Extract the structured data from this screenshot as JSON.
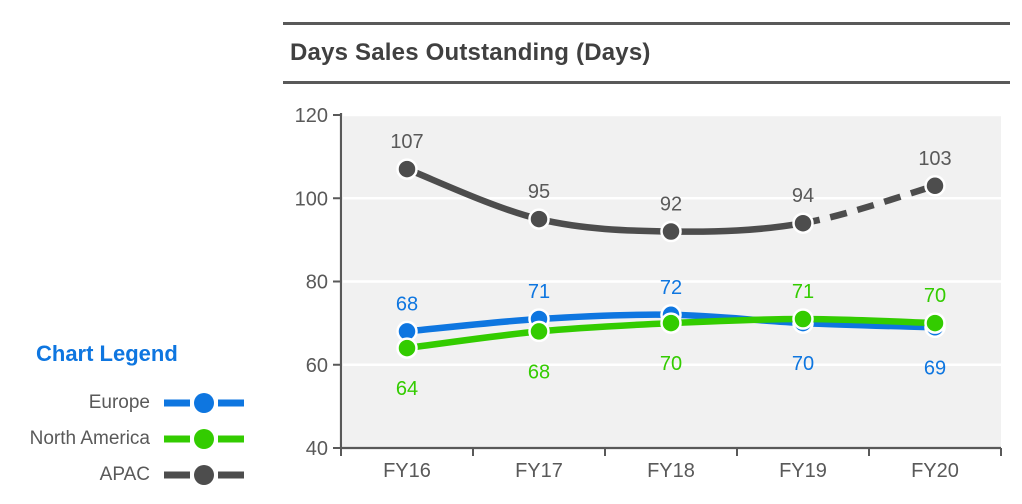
{
  "header": {
    "title": "Days Sales Outstanding (Days)"
  },
  "legend": {
    "title": "Chart Legend",
    "items": [
      {
        "label": "Europe"
      },
      {
        "label": "North America"
      },
      {
        "label": "APAC"
      }
    ]
  },
  "chart_data": {
    "type": "line",
    "title": "Days Sales Outstanding (Days)",
    "xlabel": "",
    "ylabel": "",
    "categories": [
      "FY16",
      "FY17",
      "FY18",
      "FY19",
      "FY20"
    ],
    "series": [
      {
        "name": "Europe",
        "color": "#0e76e0",
        "label_color": "#0e76e0",
        "values": [
          68,
          71,
          72,
          70,
          69
        ],
        "dashed_from_index": null,
        "label_positions": [
          "above",
          "above",
          "above",
          "below",
          "below"
        ]
      },
      {
        "name": "North America",
        "color": "#33cc00",
        "label_color": "#33cc00",
        "values": [
          64,
          68,
          70,
          71,
          70
        ],
        "dashed_from_index": null,
        "label_positions": [
          "below",
          "below",
          "below",
          "above",
          "above"
        ]
      },
      {
        "name": "APAC",
        "color": "#4d4d4d",
        "label_color": "#595959",
        "values": [
          107,
          95,
          92,
          94,
          103
        ],
        "dashed_from_index": 3,
        "label_positions": [
          "above",
          "above",
          "above",
          "above",
          "above"
        ]
      }
    ],
    "ylim": [
      40,
      120
    ],
    "yticks": [
      40,
      60,
      80,
      100,
      120
    ],
    "grid": "horizontal",
    "legend_position": "left",
    "panel_bg": "#f1f1f1",
    "grid_color": "#ffffff",
    "axis_color": "#595959",
    "tick_label_color": "#595959"
  }
}
